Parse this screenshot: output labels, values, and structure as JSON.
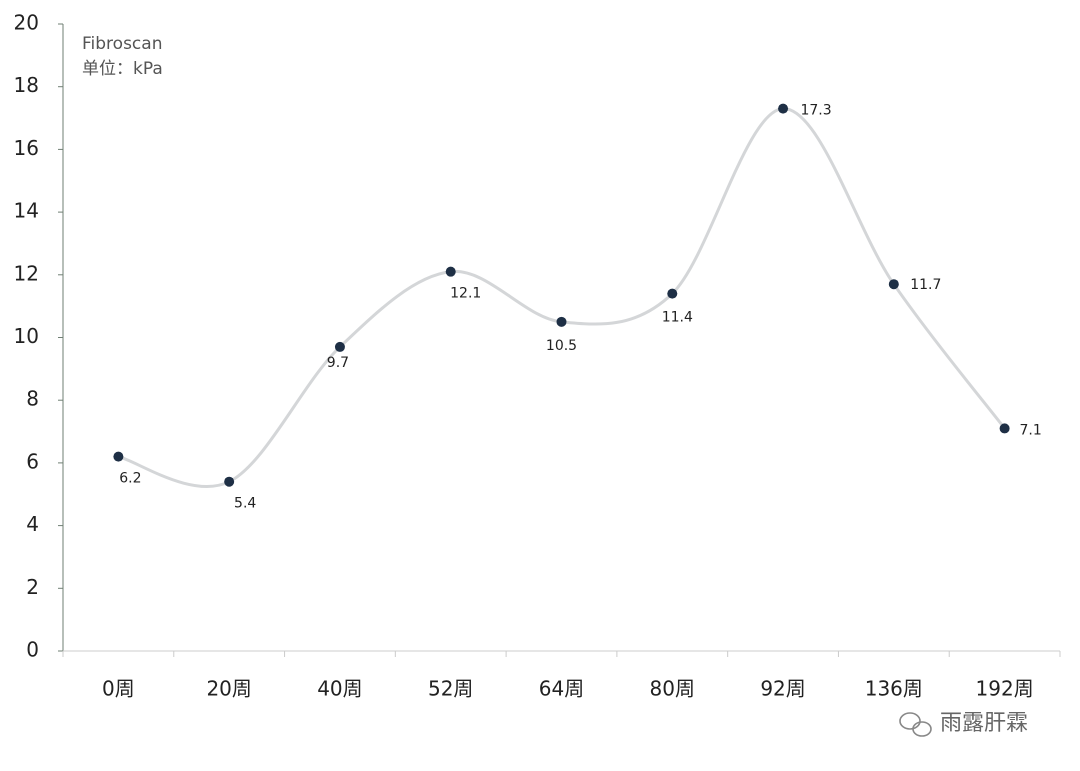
{
  "chart_data": {
    "type": "line",
    "annotation": [
      "Fibroscan",
      "单位：kPa"
    ],
    "categories": [
      "0周",
      "20周",
      "40周",
      "52周",
      "64周",
      "80周",
      "92周",
      "136周",
      "192周"
    ],
    "series": [
      {
        "color": "#d4d6d8",
        "marker_color": "#1e2f45",
        "values": [
          6.2,
          5.4,
          9.7,
          12.1,
          10.5,
          11.4,
          17.3,
          11.7,
          7.1
        ]
      }
    ],
    "ylim": [
      0,
      20
    ],
    "yticks": [
      0,
      2,
      4,
      6,
      8,
      10,
      12,
      14,
      16,
      18,
      20
    ],
    "grid": false,
    "watermark": "雨露肝霖"
  }
}
